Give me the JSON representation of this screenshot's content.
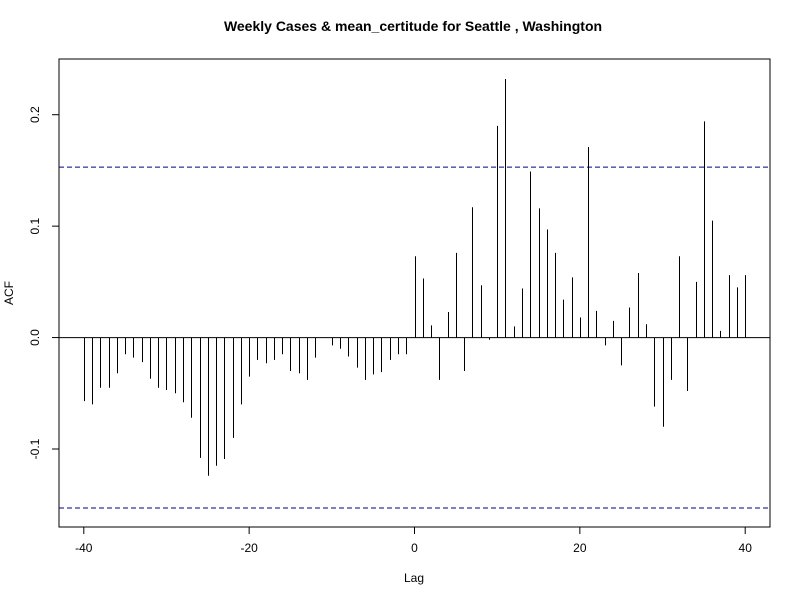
{
  "chart_data": {
    "type": "bar",
    "title": "Weekly Cases & mean_certitude for Seattle , Washington",
    "xlabel": "Lag",
    "ylabel": "ACF",
    "xlim": [
      -43,
      43
    ],
    "ylim": [
      -0.17,
      0.25
    ],
    "x_ticks": [
      -40,
      -20,
      0,
      20,
      40
    ],
    "x_tick_labels": [
      "-40",
      "-20",
      "0",
      "20",
      "40"
    ],
    "y_ticks": [
      -0.1,
      0.0,
      0.1,
      0.2
    ],
    "y_tick_labels": [
      "-0.1",
      "0.0",
      "0.1",
      "0.2"
    ],
    "confidence_bound": 0.153,
    "colors": {
      "bars": "#000000",
      "ci_line": "#00008b",
      "zero_line": "#000000"
    },
    "lags": [
      -40,
      -39,
      -38,
      -37,
      -36,
      -35,
      -34,
      -33,
      -32,
      -31,
      -30,
      -29,
      -28,
      -27,
      -26,
      -25,
      -24,
      -23,
      -22,
      -21,
      -20,
      -19,
      -18,
      -17,
      -16,
      -15,
      -14,
      -13,
      -12,
      -11,
      -10,
      -9,
      -8,
      -7,
      -6,
      -5,
      -4,
      -3,
      -2,
      -1,
      0,
      1,
      2,
      3,
      4,
      5,
      6,
      7,
      8,
      9,
      10,
      11,
      12,
      13,
      14,
      15,
      16,
      17,
      18,
      19,
      20,
      21,
      22,
      23,
      24,
      25,
      26,
      27,
      28,
      29,
      30,
      31,
      32,
      33,
      34,
      35,
      36,
      37,
      38,
      39,
      40
    ],
    "values": [
      -0.057,
      -0.06,
      -0.045,
      -0.045,
      -0.032,
      -0.015,
      -0.018,
      -0.022,
      -0.037,
      -0.045,
      -0.047,
      -0.05,
      -0.058,
      -0.072,
      -0.108,
      -0.124,
      -0.115,
      -0.109,
      -0.09,
      -0.06,
      -0.035,
      -0.02,
      -0.023,
      -0.02,
      -0.015,
      -0.03,
      -0.032,
      -0.038,
      -0.018,
      0.0,
      -0.007,
      -0.01,
      -0.017,
      -0.027,
      -0.038,
      -0.033,
      -0.031,
      -0.02,
      -0.015,
      -0.015,
      0.073,
      0.053,
      0.011,
      -0.038,
      0.023,
      0.076,
      -0.03,
      0.117,
      0.047,
      -0.002,
      0.19,
      0.232,
      0.01,
      0.044,
      0.149,
      0.116,
      0.097,
      0.076,
      0.034,
      0.054,
      0.018,
      0.171,
      0.024,
      -0.007,
      0.015,
      -0.025,
      0.027,
      0.058,
      0.012,
      -0.062,
      -0.08,
      -0.038,
      0.073,
      -0.048,
      0.05,
      0.194,
      0.105,
      0.006,
      0.056,
      0.045,
      0.056
    ]
  }
}
